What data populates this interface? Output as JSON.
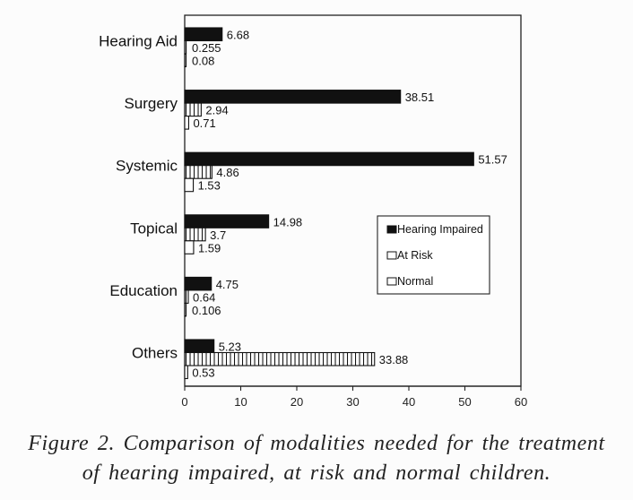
{
  "chart_data": {
    "type": "bar",
    "orientation": "horizontal",
    "categories": [
      "Hearing Aid",
      "Surgery",
      "Systemic",
      "Topical",
      "Education",
      "Others"
    ],
    "series": [
      {
        "name": "Hearing Impaired",
        "fill": "solid",
        "color": "#111111",
        "values": [
          6.68,
          38.51,
          51.57,
          14.98,
          4.75,
          5.23
        ]
      },
      {
        "name": "At Risk",
        "fill": "vertical-hatch",
        "color": "#111111",
        "values": [
          0.255,
          2.94,
          4.86,
          3.7,
          0.64,
          33.88
        ]
      },
      {
        "name": "Normal",
        "fill": "empty",
        "color": "#111111",
        "values": [
          0.08,
          0.71,
          1.53,
          1.59,
          0.106,
          0.53
        ]
      }
    ],
    "value_labels": [
      [
        "6.68",
        "0.255",
        "0.08"
      ],
      [
        "38.51",
        "2.94",
        "0.71"
      ],
      [
        "51.57",
        "4.86",
        "1.53"
      ],
      [
        "14.98",
        "3.7",
        "1.59"
      ],
      [
        "4.75",
        "0.64",
        "0.106"
      ],
      [
        "5.23",
        "33.88",
        "0.53"
      ]
    ],
    "xlim": [
      0,
      60
    ],
    "xticks": [
      "0",
      "10",
      "20",
      "30",
      "40",
      "50",
      "60"
    ],
    "xlabel": "",
    "ylabel": "",
    "grid": false,
    "legend_placement": "center-right"
  },
  "caption": {
    "line1": "Figure 2. Comparison of modalities needed for the treatment",
    "line2": "of hearing impaired, at risk and normal children."
  }
}
